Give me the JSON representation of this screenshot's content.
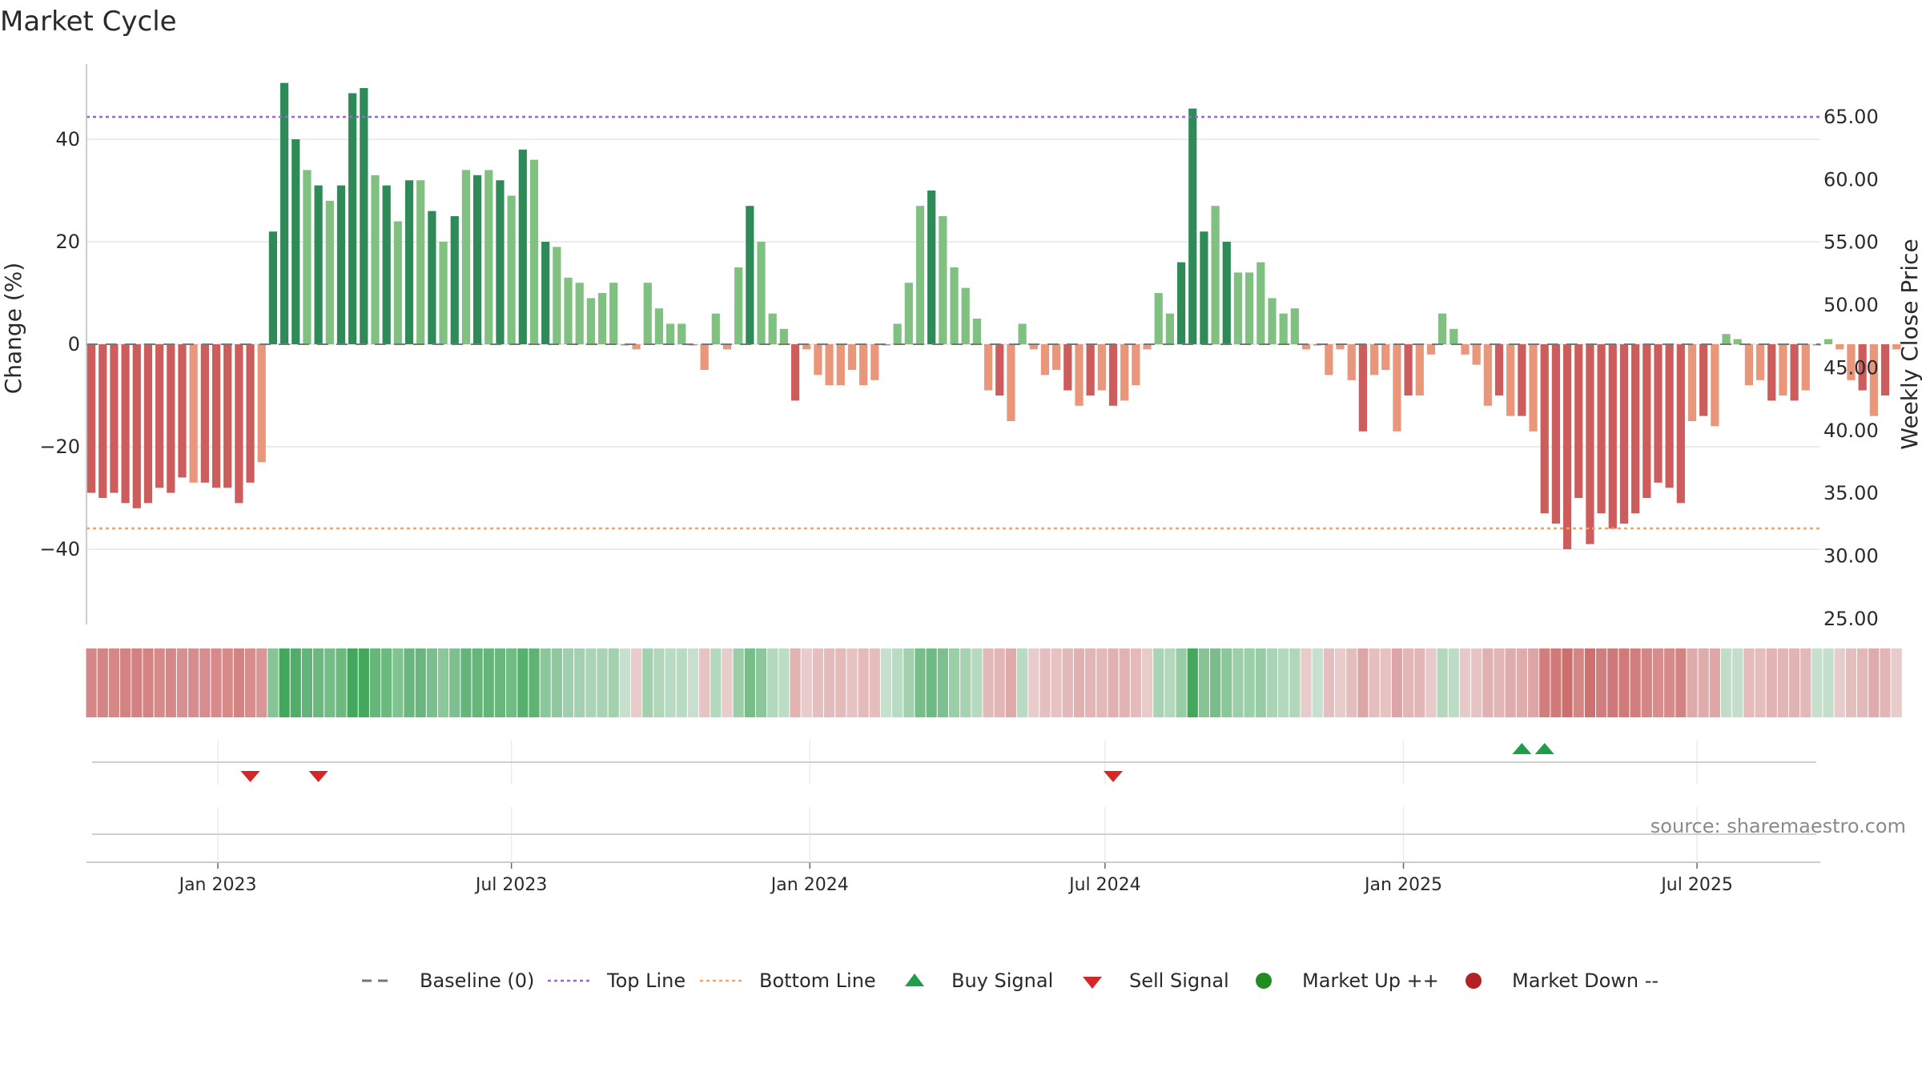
{
  "title": "Market Cycle",
  "source": "source: sharemaestro.com",
  "chart_data": {
    "type": "bar",
    "title": "Market Cycle",
    "ylabel": "Change (%)",
    "y2label": "Weekly Close Price",
    "ylim": [
      -55,
      55
    ],
    "y2lim": [
      25,
      68
    ],
    "yticks": [
      40,
      20,
      0,
      -20,
      -40
    ],
    "ytick_labels": [
      "40",
      "20",
      "0",
      "−20",
      "−40"
    ],
    "y2ticks": [
      65,
      60,
      55,
      50,
      45,
      40,
      35,
      30,
      25
    ],
    "y2tick_labels": [
      "65.00",
      "60.00",
      "55.00",
      "50.00",
      "45.00",
      "40.00",
      "35.00",
      "30.00",
      "25.00"
    ],
    "xlim": [
      "2022-10-12",
      "2025-09-15"
    ],
    "x_start": "2022-10-15",
    "x_interval_days": 7,
    "xticks": [
      {
        "date": "2023-01-01",
        "label": "Jan 2023"
      },
      {
        "date": "2023-07-01",
        "label": "Jul 2023"
      },
      {
        "date": "2024-01-01",
        "label": "Jan 2024"
      },
      {
        "date": "2024-07-01",
        "label": "Jul 2024"
      },
      {
        "date": "2025-01-01",
        "label": "Jan 2025"
      },
      {
        "date": "2025-07-01",
        "label": "Jul 2025"
      }
    ],
    "values": [
      -29,
      -30,
      -29,
      -31,
      -32,
      -31,
      -28,
      -29,
      -26,
      -27,
      -27,
      -28,
      -28,
      -31,
      -27,
      -23,
      22,
      51,
      40,
      34,
      31,
      28,
      31,
      49,
      50,
      33,
      31,
      24,
      32,
      32,
      26,
      20,
      25,
      34,
      33,
      34,
      32,
      29,
      38,
      36,
      20,
      19,
      13,
      12,
      9,
      10,
      12,
      0,
      -1,
      12,
      7,
      4,
      4,
      0,
      -5,
      6,
      -1,
      15,
      27,
      20,
      6,
      3,
      -11,
      -1,
      -6,
      -8,
      -8,
      -5,
      -8,
      -7,
      0,
      4,
      12,
      27,
      30,
      25,
      15,
      11,
      5,
      -9,
      -10,
      -15,
      4,
      -1,
      -6,
      -5,
      -9,
      -12,
      -10,
      -9,
      -12,
      -11,
      -8,
      -1,
      10,
      6,
      16,
      46,
      22,
      27,
      20,
      14,
      14,
      16,
      9,
      6,
      7,
      -1,
      0,
      -6,
      -1,
      -7,
      -17,
      -6,
      -5,
      -17,
      -10,
      -10,
      -2,
      6,
      3,
      -2,
      -4,
      -12,
      -10,
      -14,
      -14,
      -17,
      -33,
      -35,
      -40,
      -30,
      -39,
      -33,
      -36,
      -35,
      -33,
      -30,
      -27,
      -28,
      -31,
      -15,
      -14,
      -16,
      2,
      1,
      -8,
      -7,
      -11,
      -10,
      -11,
      -9,
      0,
      1,
      -1,
      -7,
      -9,
      -14,
      -10,
      -1
    ],
    "series": [
      {
        "name": "",
        "values": "values"
      }
    ],
    "reference_lines": [
      {
        "name": "Baseline (0)",
        "value": 0,
        "axis": "left"
      },
      {
        "name": "Top Line",
        "value": 65,
        "axis": "right"
      },
      {
        "name": "Bottom Line",
        "value": 32.2,
        "axis": "right"
      }
    ],
    "signals": [
      {
        "type": "sell",
        "date": "2023-01-21"
      },
      {
        "type": "sell",
        "date": "2023-03-04"
      },
      {
        "type": "sell",
        "date": "2024-07-06"
      },
      {
        "type": "buy",
        "date": "2025-03-15"
      },
      {
        "type": "buy",
        "date": "2025-03-29"
      }
    ],
    "grid": true,
    "legend_position": "bottom-center",
    "legend": [
      {
        "name": "Baseline (0)",
        "marker": "dash-line"
      },
      {
        "name": "Top Line",
        "marker": "dotted-line"
      },
      {
        "name": "Bottom Line",
        "marker": "dotted-line"
      },
      {
        "name": "Buy Signal",
        "marker": "triangle-up"
      },
      {
        "name": "Sell Signal",
        "marker": "triangle-down"
      },
      {
        "name": "Market Up ++",
        "marker": "circle"
      },
      {
        "name": "Market Down --",
        "marker": "circle"
      }
    ]
  },
  "colors": {
    "strong_up": "#2e8b57",
    "up": "#80c080",
    "strong_down": "#cd5c5c",
    "down": "#e9967a",
    "top_line": "#9966cc",
    "bottom_line": "#f4a460",
    "baseline": "#777777",
    "buy": "#1e9e4a",
    "sell": "#d62728",
    "market_up": "#228b22",
    "market_down": "#b22222"
  }
}
